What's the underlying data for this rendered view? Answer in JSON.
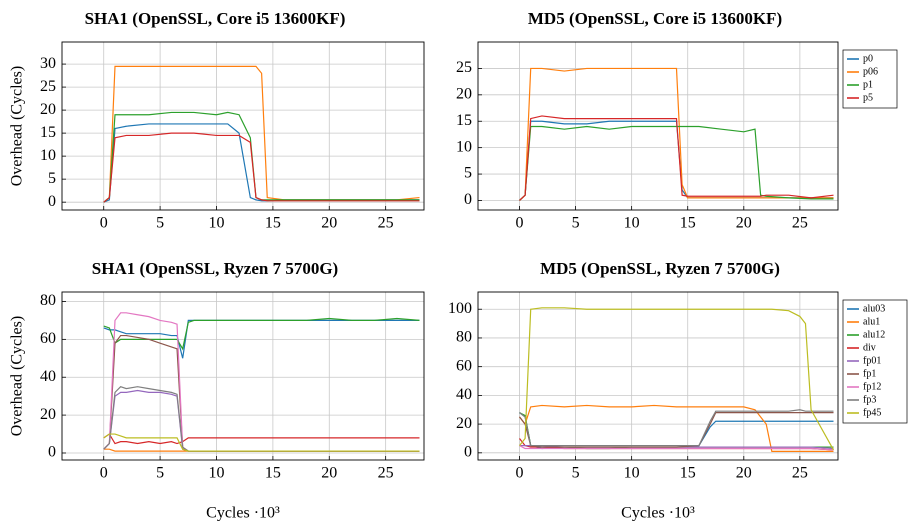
{
  "chart_data": [
    {
      "type": "line",
      "title": "SHA1 (OpenSSL, Core i5 13600KF)",
      "ylabel": "Overhead (Cycles)",
      "x": [
        0,
        0.5,
        1,
        2,
        4,
        6,
        8,
        10,
        11,
        12,
        13,
        13.5,
        14,
        14.5,
        16,
        18,
        20,
        22,
        24,
        26,
        28
      ],
      "xlim": [
        -3.7,
        28.4
      ],
      "xticks": [
        0,
        5,
        10,
        15,
        20,
        25
      ],
      "ylim": [
        -1.7,
        34.8
      ],
      "yticks": [
        0,
        5,
        10,
        15,
        20,
        25,
        30
      ],
      "grid": true,
      "series": [
        {
          "name": "p0",
          "color": "#1f77b4",
          "values": [
            0,
            0.5,
            16,
            16.5,
            17,
            17,
            17,
            17,
            17,
            15,
            1,
            0.5,
            0.3,
            0.3,
            0.5,
            0.5,
            0.5,
            0.5,
            0.5,
            0.5,
            0.5
          ]
        },
        {
          "name": "p06",
          "color": "#ff7f0e",
          "values": [
            0,
            1,
            29.5,
            29.5,
            29.5,
            29.5,
            29.5,
            29.5,
            29.5,
            29.5,
            29.5,
            29.5,
            28,
            1,
            0.5,
            0.5,
            0.5,
            0.5,
            0.5,
            0.5,
            1
          ]
        },
        {
          "name": "p1",
          "color": "#2ca02c",
          "values": [
            0,
            1,
            19,
            19,
            19,
            19.5,
            19.5,
            19,
            19.5,
            19,
            14,
            1,
            0.5,
            0.5,
            0.5,
            0.5,
            0.5,
            0.5,
            0.5,
            0.5,
            0.5
          ]
        },
        {
          "name": "p5",
          "color": "#d62728",
          "values": [
            0,
            1,
            14,
            14.5,
            14.5,
            15,
            15,
            14.5,
            14.5,
            14.5,
            13,
            1,
            0.5,
            0.3,
            0.3,
            0.3,
            0.3,
            0.3,
            0.3,
            0.3,
            0.3
          ]
        }
      ]
    },
    {
      "type": "line",
      "title": "MD5 (OpenSSL, Core i5 13600KF)",
      "legend": "outside-right",
      "x": [
        0,
        0.5,
        1,
        2,
        4,
        6,
        8,
        10,
        12,
        14,
        14.5,
        15,
        16,
        18,
        20,
        21,
        21.5,
        22,
        24,
        26,
        28
      ],
      "xlim": [
        -3.7,
        28.4
      ],
      "xticks": [
        0,
        5,
        10,
        15,
        20,
        25
      ],
      "ylim": [
        -1.8,
        30
      ],
      "yticks": [
        0,
        5,
        10,
        15,
        20,
        25
      ],
      "grid": true,
      "series": [
        {
          "name": "p0",
          "color": "#1f77b4",
          "values": [
            0,
            1,
            15,
            15,
            14.5,
            14.5,
            15,
            15,
            15,
            15,
            2,
            0.5,
            0.5,
            0.5,
            0.5,
            0.5,
            0.5,
            0.5,
            0.5,
            0.5,
            0.5
          ]
        },
        {
          "name": "p06",
          "color": "#ff7f0e",
          "values": [
            0,
            1,
            25,
            25,
            24.5,
            25,
            25,
            25,
            25,
            25,
            3,
            0.5,
            0.5,
            0.5,
            0.5,
            0.5,
            0.5,
            0.5,
            0.5,
            0.5,
            0.5
          ]
        },
        {
          "name": "p1",
          "color": "#2ca02c",
          "values": [
            0,
            1,
            14,
            14,
            13.5,
            14,
            13.5,
            14,
            14,
            14,
            14,
            14,
            14,
            13.5,
            13,
            13.5,
            1,
            0.8,
            0.5,
            0.3,
            0.3
          ]
        },
        {
          "name": "p5",
          "color": "#d62728",
          "values": [
            0,
            1,
            15.5,
            16,
            15.5,
            15.5,
            15.5,
            15.5,
            15.5,
            15.5,
            1,
            0.8,
            0.8,
            0.8,
            0.8,
            0.8,
            0.8,
            1,
            1,
            0.5,
            1
          ]
        }
      ]
    },
    {
      "type": "line",
      "title": "SHA1 (OpenSSL, Ryzen 7 5700G)",
      "ylabel": "Overhead (Cycles)",
      "xlabel": "Cycles ·10³",
      "x": [
        0,
        0.5,
        1,
        1.5,
        2,
        3,
        4,
        5,
        6,
        6.5,
        7,
        7.5,
        8,
        10,
        12,
        14,
        16,
        18,
        20,
        22,
        24,
        26,
        28
      ],
      "xlim": [
        -3.7,
        28.4
      ],
      "xticks": [
        0,
        5,
        10,
        15,
        20,
        25
      ],
      "ylim": [
        -3.7,
        85
      ],
      "yticks": [
        0,
        20,
        40,
        60,
        80
      ],
      "grid": true,
      "series": [
        {
          "name": "alu03",
          "color": "#1f77b4",
          "values": [
            66,
            65,
            65,
            64,
            63,
            63,
            63,
            63,
            62,
            62,
            50,
            70,
            70,
            70,
            70,
            70,
            70,
            70,
            70,
            70,
            70,
            70,
            70
          ]
        },
        {
          "name": "alu1",
          "color": "#ff7f0e",
          "values": [
            2,
            2,
            1,
            1,
            1,
            1,
            1,
            1,
            1,
            1,
            1,
            1,
            1,
            1,
            1,
            1,
            1,
            1,
            1,
            1,
            1,
            1,
            1
          ]
        },
        {
          "name": "alu12",
          "color": "#2ca02c",
          "values": [
            67,
            66,
            58,
            60,
            60,
            60,
            60,
            60,
            60,
            60,
            55,
            69,
            70,
            70,
            70,
            70,
            70,
            70,
            71,
            70,
            70,
            71,
            70
          ]
        },
        {
          "name": "div",
          "color": "#d62728",
          "values": [
            8,
            10,
            5,
            6,
            6,
            5,
            6,
            5,
            6,
            5,
            6,
            8,
            8,
            8,
            8,
            8,
            8,
            8,
            8,
            8,
            8,
            8,
            8
          ]
        },
        {
          "name": "fp01",
          "color": "#9467bd",
          "values": [
            2,
            5,
            30,
            32,
            32,
            33,
            32,
            32,
            31,
            30,
            2,
            1,
            1,
            1,
            1,
            1,
            1,
            1,
            1,
            1,
            1,
            1,
            1
          ]
        },
        {
          "name": "fp1",
          "color": "#8c564b",
          "values": [
            2,
            5,
            58,
            62,
            62,
            61,
            60,
            58,
            56,
            55,
            3,
            1,
            1,
            1,
            1,
            1,
            1,
            1,
            1,
            1,
            1,
            1,
            1
          ]
        },
        {
          "name": "fp12",
          "color": "#e377c2",
          "values": [
            2,
            5,
            70,
            74,
            74,
            73,
            72,
            70,
            69,
            68,
            3,
            1,
            1,
            1,
            1,
            1,
            1,
            1,
            1,
            1,
            1,
            1,
            1
          ]
        },
        {
          "name": "fp3",
          "color": "#7f7f7f",
          "values": [
            2,
            5,
            32,
            35,
            34,
            35,
            34,
            33,
            32,
            31,
            3,
            1,
            1,
            1,
            1,
            1,
            1,
            1,
            1,
            1,
            1,
            1,
            1
          ]
        },
        {
          "name": "fp45",
          "color": "#bcbd22",
          "values": [
            8,
            10,
            10,
            9,
            8,
            8,
            8,
            8,
            8,
            8,
            2,
            1,
            1,
            1,
            1,
            1,
            1,
            1,
            1,
            1,
            1,
            1,
            1
          ]
        }
      ]
    },
    {
      "type": "line",
      "title": "MD5 (OpenSSL, Ryzen 7 5700G)",
      "xlabel": "Cycles ·10³",
      "legend": "outside-right",
      "x": [
        0,
        0.5,
        1,
        2,
        4,
        6,
        8,
        10,
        12,
        14,
        16,
        17,
        17.5,
        18,
        20,
        21,
        22,
        22.5,
        24,
        25,
        25.5,
        26,
        28
      ],
      "xlim": [
        -3.7,
        28.4
      ],
      "xticks": [
        0,
        5,
        10,
        15,
        20,
        25
      ],
      "ylim": [
        -5,
        112
      ],
      "yticks": [
        0,
        20,
        40,
        60,
        80,
        100
      ],
      "grid": true,
      "series": [
        {
          "name": "alu03",
          "color": "#1f77b4",
          "values": [
            28,
            25,
            5,
            3,
            4,
            4,
            4,
            4,
            4,
            4,
            5,
            18,
            22,
            22,
            22,
            22,
            22,
            22,
            22,
            22,
            22,
            22,
            22
          ]
        },
        {
          "name": "alu1",
          "color": "#ff7f0e",
          "values": [
            25,
            20,
            32,
            33,
            32,
            33,
            32,
            32,
            33,
            32,
            32,
            32,
            32,
            32,
            32,
            30,
            20,
            1,
            1,
            1,
            1,
            1,
            1
          ]
        },
        {
          "name": "alu12",
          "color": "#2ca02c",
          "values": [
            28,
            26,
            5,
            4,
            4,
            3,
            3,
            4,
            4,
            4,
            4,
            4,
            4,
            4,
            4,
            4,
            4,
            4,
            4,
            4,
            4,
            4,
            4
          ]
        },
        {
          "name": "div",
          "color": "#d62728",
          "values": [
            10,
            5,
            4,
            4,
            3,
            3,
            3,
            3,
            3,
            3,
            3,
            3,
            3,
            3,
            3,
            3,
            3,
            3,
            3,
            3,
            3,
            3,
            2
          ]
        },
        {
          "name": "fp01",
          "color": "#9467bd",
          "values": [
            5,
            5,
            5,
            5,
            4,
            4,
            4,
            4,
            4,
            4,
            4,
            4,
            4,
            4,
            4,
            4,
            4,
            4,
            4,
            4,
            4,
            4,
            3
          ]
        },
        {
          "name": "fp1",
          "color": "#8c564b",
          "values": [
            25,
            20,
            5,
            4,
            4,
            4,
            4,
            4,
            4,
            4,
            5,
            20,
            28,
            28,
            28,
            28,
            28,
            28,
            28,
            28,
            28,
            28,
            28
          ]
        },
        {
          "name": "fp12",
          "color": "#e377c2",
          "values": [
            5,
            3,
            3,
            3,
            3,
            3,
            3,
            3,
            3,
            3,
            3,
            3,
            3,
            3,
            3,
            3,
            3,
            3,
            3,
            3,
            3,
            3,
            2
          ]
        },
        {
          "name": "fp3",
          "color": "#7f7f7f",
          "values": [
            28,
            25,
            5,
            5,
            5,
            5,
            5,
            5,
            5,
            5,
            5,
            22,
            29,
            29,
            29,
            29,
            29,
            29,
            29,
            30,
            29,
            29,
            29
          ]
        },
        {
          "name": "fp45",
          "color": "#bcbd22",
          "values": [
            5,
            10,
            100,
            101,
            101,
            100,
            100,
            100,
            100,
            100,
            100,
            100,
            100,
            100,
            100,
            100,
            100,
            100,
            99,
            95,
            90,
            30,
            2
          ]
        }
      ]
    }
  ]
}
